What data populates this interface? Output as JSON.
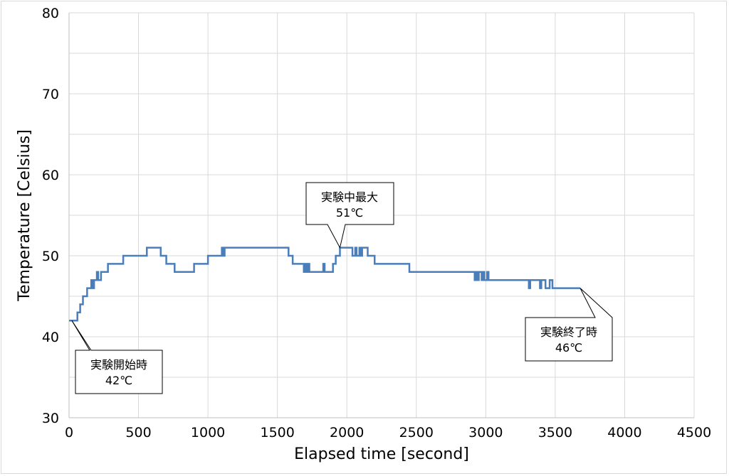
{
  "chart_data": {
    "type": "line",
    "title": "",
    "xlabel": "Elapsed time [second]",
    "ylabel": "Temperature [Celsius]",
    "xlim": [
      0,
      4500
    ],
    "ylim": [
      30,
      80
    ],
    "x_ticks": [
      0,
      500,
      1000,
      1500,
      2000,
      2500,
      3000,
      3500,
      4000,
      4500
    ],
    "y_ticks": [
      30,
      40,
      50,
      60,
      70,
      80
    ],
    "x_tick_labels": [
      "0",
      "500",
      "1000",
      "1500",
      "2000",
      "2500",
      "3000",
      "3500",
      "4000",
      "4500"
    ],
    "y_tick_labels": [
      "30",
      "40",
      "50",
      "60",
      "70",
      "80"
    ],
    "grid": true,
    "series_color": "#4a7ebb",
    "series": [
      {
        "points": [
          [
            0,
            42
          ],
          [
            60,
            42
          ],
          [
            60,
            43
          ],
          [
            80,
            43
          ],
          [
            80,
            44
          ],
          [
            100,
            44
          ],
          [
            100,
            45
          ],
          [
            130,
            45
          ],
          [
            130,
            46
          ],
          [
            160,
            46
          ],
          [
            160,
            47
          ],
          [
            170,
            47
          ],
          [
            170,
            46
          ],
          [
            180,
            46
          ],
          [
            180,
            47
          ],
          [
            200,
            47
          ],
          [
            200,
            48
          ],
          [
            210,
            48
          ],
          [
            210,
            47
          ],
          [
            230,
            47
          ],
          [
            230,
            48
          ],
          [
            260,
            48
          ],
          [
            260,
            48
          ],
          [
            280,
            48
          ],
          [
            280,
            49
          ],
          [
            390,
            49
          ],
          [
            390,
            50
          ],
          [
            560,
            50
          ],
          [
            560,
            51
          ],
          [
            660,
            51
          ],
          [
            660,
            50
          ],
          [
            700,
            50
          ],
          [
            700,
            49
          ],
          [
            760,
            49
          ],
          [
            760,
            48
          ],
          [
            900,
            48
          ],
          [
            900,
            49
          ],
          [
            1000,
            49
          ],
          [
            1000,
            50
          ],
          [
            1100,
            50
          ],
          [
            1100,
            51
          ],
          [
            1110,
            51
          ],
          [
            1110,
            50
          ],
          [
            1120,
            50
          ],
          [
            1120,
            51
          ],
          [
            1580,
            51
          ],
          [
            1580,
            50
          ],
          [
            1610,
            50
          ],
          [
            1610,
            49
          ],
          [
            1690,
            49
          ],
          [
            1690,
            48
          ],
          [
            1700,
            48
          ],
          [
            1700,
            49
          ],
          [
            1710,
            49
          ],
          [
            1710,
            48
          ],
          [
            1720,
            48
          ],
          [
            1720,
            49
          ],
          [
            1730,
            49
          ],
          [
            1730,
            48
          ],
          [
            1830,
            48
          ],
          [
            1830,
            49
          ],
          [
            1840,
            49
          ],
          [
            1840,
            48
          ],
          [
            1900,
            48
          ],
          [
            1900,
            49
          ],
          [
            1920,
            49
          ],
          [
            1920,
            50
          ],
          [
            1950,
            50
          ],
          [
            1950,
            51
          ],
          [
            2040,
            51
          ],
          [
            2040,
            50
          ],
          [
            2060,
            50
          ],
          [
            2060,
            51
          ],
          [
            2070,
            51
          ],
          [
            2070,
            50
          ],
          [
            2090,
            50
          ],
          [
            2090,
            51
          ],
          [
            2100,
            51
          ],
          [
            2100,
            50
          ],
          [
            2110,
            50
          ],
          [
            2110,
            51
          ],
          [
            2150,
            51
          ],
          [
            2150,
            50
          ],
          [
            2200,
            50
          ],
          [
            2200,
            49
          ],
          [
            2450,
            49
          ],
          [
            2450,
            48
          ],
          [
            2920,
            48
          ],
          [
            2920,
            47
          ],
          [
            2930,
            47
          ],
          [
            2930,
            48
          ],
          [
            2940,
            48
          ],
          [
            2940,
            47
          ],
          [
            2950,
            47
          ],
          [
            2950,
            48
          ],
          [
            2970,
            48
          ],
          [
            2970,
            47
          ],
          [
            2980,
            47
          ],
          [
            2980,
            48
          ],
          [
            2990,
            48
          ],
          [
            2990,
            47
          ],
          [
            3010,
            47
          ],
          [
            3010,
            48
          ],
          [
            3020,
            48
          ],
          [
            3020,
            47
          ],
          [
            3310,
            47
          ],
          [
            3310,
            46
          ],
          [
            3320,
            46
          ],
          [
            3320,
            47
          ],
          [
            3390,
            47
          ],
          [
            3390,
            46
          ],
          [
            3400,
            46
          ],
          [
            3400,
            47
          ],
          [
            3430,
            47
          ],
          [
            3430,
            46
          ],
          [
            3460,
            46
          ],
          [
            3460,
            47
          ],
          [
            3480,
            47
          ],
          [
            3480,
            46
          ],
          [
            3680,
            46
          ]
        ]
      }
    ],
    "annotations": [
      {
        "text_line1": "実験開始時",
        "text_line2": "42℃",
        "x": 20,
        "y": 42,
        "box_pos": "below-right"
      },
      {
        "text_line1": "実験中最大",
        "text_line2": "51℃",
        "x": 1950,
        "y": 51,
        "box_pos": "above"
      },
      {
        "text_line1": "実験終了時",
        "text_line2": "46℃",
        "x": 3680,
        "y": 46,
        "box_pos": "below-right"
      }
    ]
  }
}
